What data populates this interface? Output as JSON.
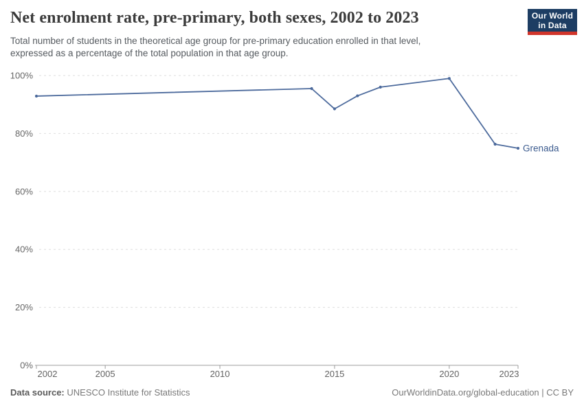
{
  "header": {
    "title": "Net enrolment rate, pre-primary, both sexes, 2002 to 2023",
    "subtitle_lines": [
      "Total number of students in the theoretical age group for pre-primary education enrolled in that level,",
      "expressed as a percentage of the total population in that age group."
    ]
  },
  "logo": {
    "line1": "Our World",
    "line2": "in Data",
    "bg_color": "#1D3D63",
    "bar_color": "#D1352B",
    "text_color": "#FFFFFF"
  },
  "chart_data": {
    "type": "line",
    "title": "Net enrolment rate, pre-primary, both sexes, 2002 to 2023",
    "xlabel": "",
    "ylabel": "",
    "xlim": [
      2002,
      2023
    ],
    "ylim": [
      0,
      100
    ],
    "grid": "horizontal-dashed",
    "legend_position": "end-of-line-label",
    "x_ticks": [
      {
        "v": 2002,
        "label": "2002",
        "dx": 16
      },
      {
        "v": 2005,
        "label": "2005",
        "dx": 0
      },
      {
        "v": 2010,
        "label": "2010",
        "dx": 0
      },
      {
        "v": 2015,
        "label": "2015",
        "dx": 0
      },
      {
        "v": 2020,
        "label": "2020",
        "dx": 0
      },
      {
        "v": 2023,
        "label": "2023",
        "dx": -13
      }
    ],
    "y_ticks": [
      {
        "v": 0,
        "label": "0%"
      },
      {
        "v": 20,
        "label": "20%"
      },
      {
        "v": 40,
        "label": "40%"
      },
      {
        "v": 60,
        "label": "60%"
      },
      {
        "v": 80,
        "label": "80%"
      },
      {
        "v": 100,
        "label": "100%"
      }
    ],
    "series": [
      {
        "name": "Grenada",
        "color": "#4C6A9C",
        "label_color": "#3D5C8F",
        "x": [
          2002,
          2014,
          2015,
          2016,
          2017,
          2020,
          2022,
          2023
        ],
        "y": [
          92.9,
          95.5,
          88.5,
          93.0,
          96.0,
          99.0,
          76.3,
          74.9
        ]
      }
    ],
    "end_label": "Grenada"
  },
  "footer": {
    "datasource_label": "Data source:",
    "datasource_value": "UNESCO Institute for Statistics",
    "right_text": "OurWorldinData.org/global-education | CC BY"
  }
}
